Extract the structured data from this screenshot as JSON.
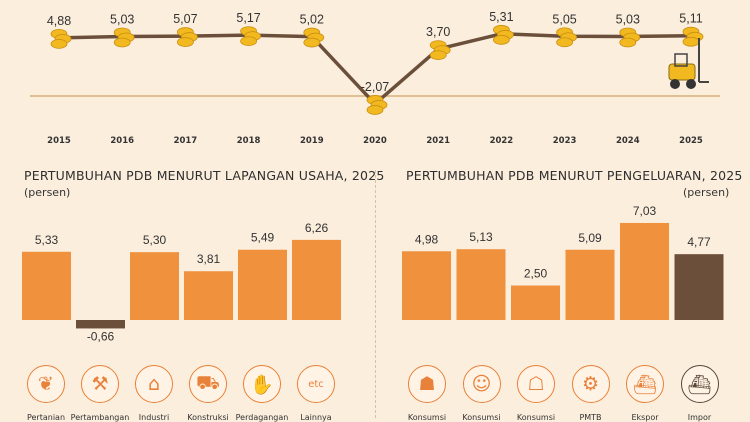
{
  "chart_data": [
    {
      "type": "line",
      "x": [
        "2015",
        "2016",
        "2017",
        "2018",
        "2019",
        "2020",
        "2021",
        "2022",
        "2023",
        "2024",
        "2025"
      ],
      "values": [
        4.88,
        5.03,
        5.07,
        5.17,
        5.02,
        -2.07,
        3.7,
        5.31,
        5.05,
        5.03,
        5.11
      ],
      "value_labels": [
        "4,88",
        "5,03",
        "5,07",
        "5,17",
        "5,02",
        "-2,07",
        "3,70",
        "5,31",
        "5,05",
        "5,03",
        "5,11"
      ],
      "ylim": [
        -2.5,
        5.5
      ],
      "line_color": "#6b4f3a",
      "marker": "coin-stack-icon",
      "marker_color": "#f2b820",
      "highlight_marker": "forklift-icon"
    },
    {
      "type": "bar",
      "title": "PERTUMBUHAN PDB MENURUT LAPANGAN USAHA, 2025",
      "subtitle": "(persen)",
      "categories": [
        "Pertanian",
        "Pertambangan",
        "Industri",
        "Konstruksi",
        "Perdagangan",
        "Lainnya"
      ],
      "values": [
        5.33,
        -0.66,
        5.3,
        3.81,
        5.49,
        6.26
      ],
      "value_labels": [
        "5,33",
        "-0,66",
        "5,30",
        "3,81",
        "5,49",
        "6,26"
      ],
      "bar_colors": [
        "#f0913d",
        "#6b4f3a",
        "#f0913d",
        "#f0913d",
        "#f0913d",
        "#f0913d"
      ],
      "ylim": [
        -1,
        7
      ],
      "icons": [
        "leaf-icon",
        "oil-pump-icon",
        "factory-icon",
        "truck-mixer-icon",
        "handshake-icon",
        "etc-icon"
      ],
      "icon_text": [
        "",
        "",
        "",
        "",
        "",
        "etc"
      ]
    },
    {
      "type": "bar",
      "title": "PERTUMBUHAN PDB MENURUT PENGELUARAN, 2025",
      "subtitle": "(persen)",
      "categories": [
        "Konsumsi",
        "Konsumsi",
        "Konsumsi",
        "PMTB",
        "Ekspor",
        "Impor"
      ],
      "values": [
        4.98,
        5.13,
        2.5,
        5.09,
        7.03,
        4.77
      ],
      "value_labels": [
        "4,98",
        "5,13",
        "2,50",
        "5,09",
        "7,03",
        "4,77"
      ],
      "bar_colors": [
        "#f0913d",
        "#f0913d",
        "#f0913d",
        "#f0913d",
        "#f0913d",
        "#6b4f3a"
      ],
      "ylim": [
        0,
        8
      ],
      "icons": [
        "shopping-basket-icon",
        "person-icon",
        "government-building-icon",
        "robot-arm-icon",
        "cargo-ship-icon",
        "import-ship-icon"
      ]
    }
  ]
}
